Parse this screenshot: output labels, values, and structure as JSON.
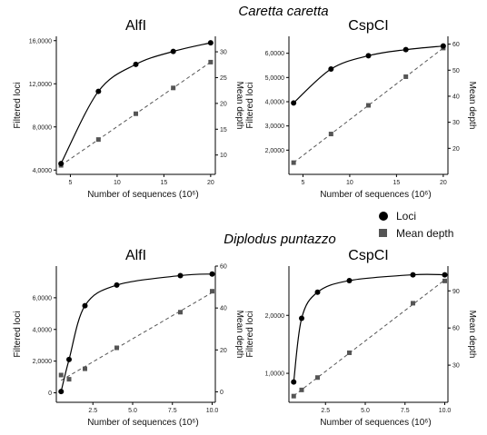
{
  "figure": {
    "species_top": "Caretta caretta",
    "species_bottom": "Diplodus puntazzo",
    "legend": [
      {
        "label": "Loci",
        "marker": "circle",
        "color": "#000000"
      },
      {
        "label": "Mean depth",
        "marker": "square",
        "color": "#555555"
      }
    ]
  },
  "chart_data": [
    {
      "type": "scatter",
      "group": "Caretta caretta",
      "title": "AlfI",
      "xlabel": "Number of sequences (10⁶)",
      "ylabel": "Filtered loci",
      "ylabel_right": "Mean depth",
      "xlim": [
        3.5,
        20.5
      ],
      "ylim": [
        3600,
        16400
      ],
      "y2lim": [
        6.25,
        33
      ],
      "xticks": [
        5,
        10,
        15,
        20
      ],
      "yticks": [
        4000,
        8000,
        12000,
        16000
      ],
      "yticklabels": [
        "4,0000",
        "8,0000",
        "12,0000",
        "16,0000"
      ],
      "y2ticks": [
        10,
        15,
        20,
        25,
        30
      ],
      "series": [
        {
          "name": "Loci",
          "x": [
            4,
            8,
            12,
            16,
            20
          ],
          "y": [
            4600,
            11300,
            13800,
            15000,
            15800
          ],
          "style": "circle",
          "fit": "saturating curve"
        },
        {
          "name": "Mean depth",
          "x": [
            4,
            8,
            12,
            16,
            20
          ],
          "y": [
            8,
            13,
            18,
            23,
            28
          ],
          "style": "square",
          "fit": "dashed line"
        }
      ],
      "grid": false
    },
    {
      "type": "scatter",
      "group": "Caretta caretta",
      "title": "CspCI",
      "xlabel": "Number of sequences (10⁶)",
      "ylabel": "Filtered loci",
      "ylabel_right": "Mean depth",
      "xlim": [
        3.5,
        20.5
      ],
      "ylim": [
        1000,
        6700
      ],
      "y2lim": [
        10,
        63
      ],
      "xticks": [
        5,
        10,
        15,
        20
      ],
      "yticks": [
        2000,
        3000,
        4000,
        5000,
        6000
      ],
      "yticklabels": [
        "2,0000",
        "3,0000",
        "4,0000",
        "5,0000",
        "6,0000"
      ],
      "y2ticks": [
        20,
        30,
        40,
        50,
        60
      ],
      "series": [
        {
          "name": "Loci",
          "x": [
            4,
            8,
            12,
            16,
            20
          ],
          "y": [
            3950,
            5350,
            5900,
            6150,
            6300
          ],
          "style": "circle",
          "fit": "saturating curve"
        },
        {
          "name": "Mean depth",
          "x": [
            4,
            8,
            12,
            16,
            20
          ],
          "y": [
            14.5,
            25.5,
            36.5,
            47.5,
            58.5
          ],
          "style": "square",
          "fit": "dashed line"
        }
      ],
      "grid": false
    },
    {
      "type": "scatter",
      "group": "Diplodus puntazzo",
      "title": "AlfI",
      "xlabel": "Number of sequences (10⁶)",
      "ylabel": "Filtered loci",
      "ylabel_right": "Mean depth",
      "xlim": [
        0.2,
        10.2
      ],
      "ylim": [
        -600,
        8000
      ],
      "y2lim": [
        -5,
        60
      ],
      "xticks": [
        2.5,
        5.0,
        7.5,
        10.0
      ],
      "xticklabels": [
        "2.5",
        "5.0",
        "7.5",
        "10.0"
      ],
      "yticks": [
        0,
        2000,
        4000,
        6000
      ],
      "yticklabels": [
        "0",
        "2,0000",
        "4,0000",
        "6,0000"
      ],
      "y2ticks": [
        0,
        20,
        40,
        60
      ],
      "series": [
        {
          "name": "Loci",
          "x": [
            0.5,
            1,
            2,
            4,
            8,
            10
          ],
          "y": [
            80,
            2100,
            5500,
            6800,
            7400,
            7500
          ],
          "style": "circle",
          "fit": "saturating curve"
        },
        {
          "name": "Mean depth",
          "x": [
            0.5,
            1,
            2,
            4,
            8,
            10
          ],
          "y": [
            8,
            6,
            11,
            21,
            38,
            48
          ],
          "style": "square",
          "fit": "dashed line"
        }
      ],
      "grid": false
    },
    {
      "type": "scatter",
      "group": "Diplodus puntazzo",
      "title": "CspCI",
      "xlabel": "Number of sequences (10⁶)",
      "ylabel": "Filtered loci",
      "ylabel_right": "Mean depth",
      "xlim": [
        0.2,
        10.2
      ],
      "ylim": [
        500,
        2850
      ],
      "y2lim": [
        0,
        110
      ],
      "xticks": [
        2.5,
        5.0,
        7.5,
        10.0
      ],
      "xticklabels": [
        "2.5",
        "5.0",
        "7.5",
        "10.0"
      ],
      "yticks": [
        1000,
        2000
      ],
      "yticklabels": [
        "1,0000",
        "2,0000"
      ],
      "y2ticks": [
        30,
        60,
        90
      ],
      "series": [
        {
          "name": "Loci",
          "x": [
            0.5,
            1,
            2,
            4,
            8,
            10
          ],
          "y": [
            850,
            1950,
            2400,
            2600,
            2700,
            2700
          ],
          "style": "circle",
          "fit": "saturating curve"
        },
        {
          "name": "Mean depth",
          "x": [
            0.5,
            1,
            2,
            4,
            8,
            10
          ],
          "y": [
            5,
            10,
            20,
            40,
            80,
            98
          ],
          "style": "square",
          "fit": "dashed line"
        }
      ],
      "grid": false
    }
  ]
}
